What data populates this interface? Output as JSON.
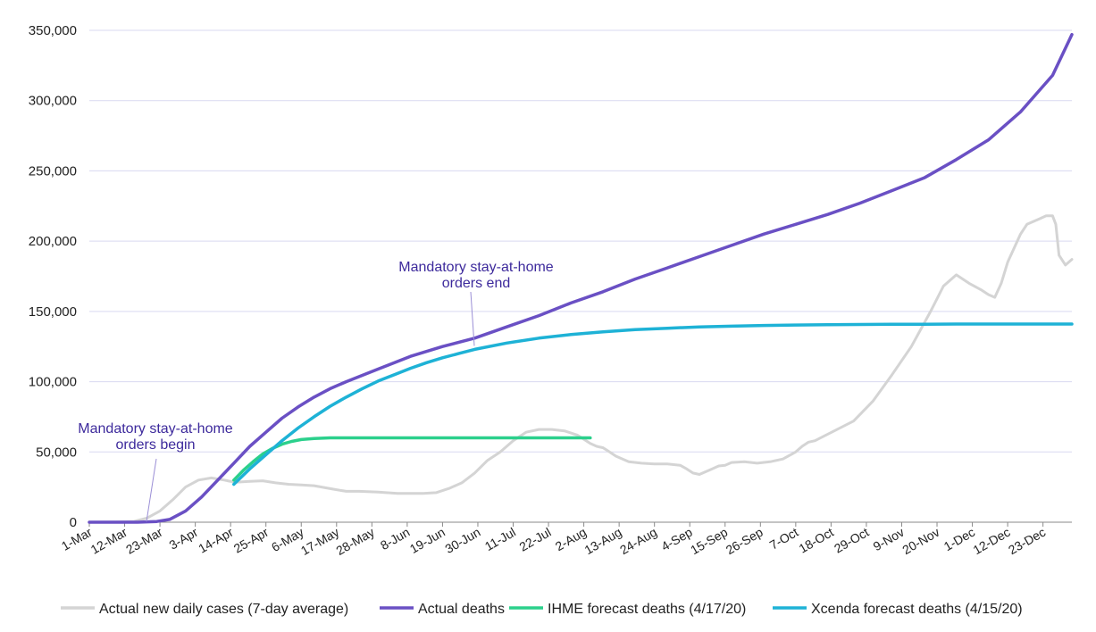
{
  "chart_data": {
    "type": "line",
    "title": "",
    "xlabel": "",
    "ylabel": "",
    "ylim": [
      0,
      350000
    ],
    "grid": true,
    "legend_position": "bottom",
    "y_ticks": [
      "0",
      "50,000",
      "100,000",
      "150,000",
      "200,000",
      "250,000",
      "300,000",
      "350,000"
    ],
    "x_tick_labels": [
      "1-Mar",
      "12-Mar",
      "23-Mar",
      "3-Apr",
      "14-Apr",
      "25-Apr",
      "6-May",
      "17-May",
      "28-May",
      "8-Jun",
      "19-Jun",
      "30-Jun",
      "11-Jul",
      "22-Jul",
      "2-Aug",
      "13-Aug",
      "24-Aug",
      "4-Sep",
      "15-Sep",
      "26-Sep",
      "7-Oct",
      "18-Oct",
      "29-Oct",
      "9-Nov",
      "20-Nov",
      "1-Dec",
      "12-Dec",
      "23-Dec"
    ],
    "series": [
      {
        "name": "Actual new daily cases (7-day average)",
        "color": "#d4d4d4",
        "x": [
          0,
          8,
          14,
          18,
          22,
          26,
          30,
          34,
          38,
          42,
          44,
          46,
          50,
          54,
          58,
          62,
          66,
          70,
          76,
          80,
          84,
          90,
          96,
          100,
          104,
          108,
          112,
          116,
          120,
          124,
          128,
          130,
          132,
          136,
          140,
          144,
          148,
          152,
          156,
          158,
          160,
          162,
          164,
          168,
          172,
          176,
          180,
          184,
          186,
          188,
          190,
          194,
          196,
          198,
          200,
          204,
          208,
          212,
          216,
          220,
          222,
          224,
          226,
          232,
          238,
          244,
          250,
          256,
          262,
          266,
          270,
          274,
          278,
          280,
          282,
          284,
          286,
          290,
          292,
          294,
          296,
          298,
          300,
          301,
          302,
          304,
          306
        ],
        "y": [
          0,
          100,
          600,
          3000,
          8000,
          16000,
          25000,
          30000,
          31500,
          30000,
          29000,
          28500,
          29000,
          29500,
          28000,
          27000,
          26500,
          26000,
          23500,
          22000,
          22000,
          21500,
          20500,
          20500,
          20500,
          21000,
          24000,
          28000,
          35000,
          44000,
          50000,
          54000,
          58000,
          64000,
          66000,
          66000,
          65000,
          62000,
          56000,
          54000,
          53000,
          50000,
          47000,
          43000,
          42000,
          41500,
          41500,
          40500,
          38000,
          35000,
          34000,
          38000,
          40000,
          40500,
          42500,
          43000,
          42000,
          43000,
          45000,
          50000,
          54000,
          57000,
          58000,
          65000,
          72000,
          86000,
          105000,
          125000,
          150000,
          168000,
          176000,
          170000,
          165000,
          162000,
          160000,
          170000,
          185000,
          205000,
          212000,
          214000,
          216000,
          218000,
          218000,
          212000,
          190000,
          183000,
          187000
        ]
      },
      {
        "name": "Actual deaths",
        "color": "#6a50c4",
        "x": [
          0,
          15,
          21,
          25,
          30,
          35,
          40,
          45,
          50,
          55,
          60,
          65,
          70,
          75,
          80,
          90,
          100,
          110,
          120,
          130,
          140,
          150,
          160,
          170,
          180,
          190,
          200,
          210,
          220,
          230,
          240,
          250,
          260,
          270,
          280,
          290,
          300,
          306
        ],
        "y": [
          0,
          0,
          500,
          2000,
          8000,
          18000,
          30000,
          42000,
          54000,
          64000,
          74000,
          82000,
          89000,
          95000,
          100000,
          109000,
          118000,
          125000,
          131000,
          139000,
          147000,
          156000,
          164000,
          173000,
          181000,
          189000,
          197000,
          205000,
          212000,
          219000,
          227000,
          236000,
          245000,
          258000,
          272000,
          292000,
          318000,
          347000
        ]
      },
      {
        "name": "IHME forecast deaths (4/17/20)",
        "color": "#2bd08c",
        "x": [
          45,
          48,
          51,
          54,
          57,
          60,
          63,
          66,
          70,
          75,
          80,
          90,
          100,
          120,
          140,
          150,
          156
        ],
        "y": [
          30000,
          37000,
          43000,
          48500,
          52500,
          55500,
          57500,
          58800,
          59600,
          60000,
          60000,
          60000,
          60000,
          60000,
          60000,
          60000,
          60000
        ]
      },
      {
        "name": "Xcenda forecast deaths (4/15/20)",
        "color": "#1eb2d6",
        "x": [
          45,
          50,
          55,
          60,
          65,
          70,
          75,
          80,
          85,
          90,
          95,
          100,
          105,
          110,
          115,
          120,
          130,
          140,
          150,
          160,
          170,
          180,
          190,
          200,
          210,
          220,
          230,
          240,
          250,
          260,
          270,
          280,
          290,
          300,
          306
        ],
        "y": [
          27000,
          38000,
          48000,
          58000,
          67000,
          75000,
          82500,
          89000,
          95000,
          100500,
          105000,
          109500,
          113500,
          117000,
          120000,
          123000,
          127500,
          131000,
          133500,
          135500,
          137000,
          138000,
          139000,
          139500,
          140000,
          140300,
          140500,
          140700,
          140800,
          140900,
          141000,
          141000,
          141000,
          141000,
          141000
        ]
      }
    ],
    "annotations": [
      {
        "lines": [
          "Mandatory stay-at-home",
          "orders begin"
        ]
      },
      {
        "lines": [
          "Mandatory stay-at-home",
          "orders end"
        ]
      }
    ]
  }
}
